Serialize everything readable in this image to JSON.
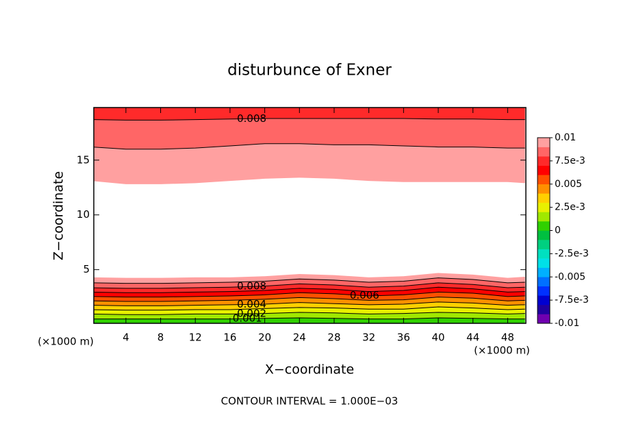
{
  "chart_data": {
    "type": "contour",
    "title": "disturbunce of Exner",
    "xlabel": "X−coordinate",
    "ylabel": "Z−coordinate",
    "x_unit": "(×1000 m)",
    "footnote": "CONTOUR INTERVAL = 1.000E−03",
    "xlim": [
      0.3,
      50.1
    ],
    "ylim": [
      0.1,
      19.8
    ],
    "xticks": [
      4,
      8,
      12,
      16,
      20,
      24,
      28,
      32,
      36,
      40,
      44,
      48
    ],
    "yticks": [
      5,
      10,
      15
    ],
    "x": [
      0,
      4,
      8,
      12,
      16,
      20,
      24,
      28,
      32,
      36,
      40,
      44,
      48,
      50
    ],
    "lower_contours": [
      {
        "level": 0.001,
        "y": [
          0.5,
          0.5,
          0.5,
          0.5,
          0.5,
          0.55,
          0.6,
          0.55,
          0.5,
          0.5,
          0.6,
          0.55,
          0.5,
          0.5
        ]
      },
      {
        "level": 0.002,
        "y": [
          0.95,
          0.9,
          0.9,
          0.95,
          0.95,
          1.0,
          1.1,
          1.05,
          0.95,
          1.0,
          1.1,
          1.05,
          0.95,
          1.0
        ]
      },
      {
        "level": 0.003,
        "y": [
          1.35,
          1.3,
          1.3,
          1.35,
          1.35,
          1.45,
          1.55,
          1.5,
          1.4,
          1.4,
          1.6,
          1.5,
          1.35,
          1.4
        ]
      },
      {
        "level": 0.004,
        "y": [
          1.75,
          1.7,
          1.7,
          1.75,
          1.8,
          1.85,
          2.0,
          1.9,
          1.8,
          1.85,
          2.05,
          1.95,
          1.75,
          1.8
        ]
      },
      {
        "level": 0.005,
        "y": [
          2.15,
          2.1,
          2.1,
          2.15,
          2.2,
          2.3,
          2.45,
          2.35,
          2.2,
          2.25,
          2.5,
          2.4,
          2.15,
          2.2
        ]
      },
      {
        "level": 0.006,
        "y": [
          2.55,
          2.5,
          2.5,
          2.55,
          2.6,
          2.7,
          2.9,
          2.8,
          2.6,
          2.7,
          2.95,
          2.85,
          2.55,
          2.6
        ]
      },
      {
        "level": 0.007,
        "y": [
          2.95,
          2.9,
          2.9,
          2.95,
          3.0,
          3.1,
          3.3,
          3.2,
          3.0,
          3.1,
          3.4,
          3.25,
          2.95,
          3.0
        ]
      },
      {
        "level": 0.008,
        "y": [
          3.35,
          3.3,
          3.3,
          3.35,
          3.4,
          3.5,
          3.7,
          3.6,
          3.4,
          3.5,
          3.8,
          3.65,
          3.35,
          3.4
        ]
      },
      {
        "level": 0.009,
        "y": [
          3.8,
          3.75,
          3.75,
          3.8,
          3.85,
          3.95,
          4.15,
          4.05,
          3.85,
          3.95,
          4.25,
          4.1,
          3.8,
          3.85
        ]
      },
      {
        "level": 0.01,
        "y": [
          4.3,
          4.25,
          4.25,
          4.3,
          4.3,
          4.4,
          4.6,
          4.5,
          4.3,
          4.4,
          4.7,
          4.55,
          4.25,
          4.35
        ]
      }
    ],
    "upper_contours": [
      {
        "level": 0.01,
        "y": [
          13.1,
          12.8,
          12.8,
          12.9,
          13.1,
          13.3,
          13.4,
          13.3,
          13.1,
          13.0,
          13.0,
          13.0,
          13.0,
          12.9
        ]
      },
      {
        "level": 0.009,
        "y": [
          16.2,
          16.0,
          16.0,
          16.1,
          16.3,
          16.5,
          16.5,
          16.4,
          16.4,
          16.3,
          16.2,
          16.2,
          16.1,
          16.1
        ]
      },
      {
        "level": 0.008,
        "y": [
          18.7,
          18.65,
          18.65,
          18.7,
          18.75,
          18.8,
          18.8,
          18.8,
          18.8,
          18.8,
          18.75,
          18.75,
          18.7,
          18.7
        ]
      }
    ],
    "clim": [
      -0.01,
      0.01
    ],
    "colors": [
      "#7000b0",
      "#2000a0",
      "#0000d0",
      "#0030ff",
      "#0070ff",
      "#00b0ff",
      "#00e0e8",
      "#00e0c0",
      "#00d080",
      "#00c040",
      "#30d000",
      "#a0e800",
      "#e8f000",
      "#ffd000",
      "#ff9000",
      "#ff5000",
      "#ff0000",
      "#ff2a2a",
      "#ff6666",
      "#ffa0a0"
    ],
    "cticks": [
      0.01,
      {
        "value": 0.0075,
        "label": "7.5e-3"
      },
      0.005,
      {
        "value": 0.0025,
        "label": "2.5e-3"
      },
      0,
      {
        "value": -0.0025,
        "label": "-2.5e-3"
      },
      -0.005,
      {
        "value": -0.0075,
        "label": "-7.5e-3"
      },
      -0.01
    ]
  }
}
